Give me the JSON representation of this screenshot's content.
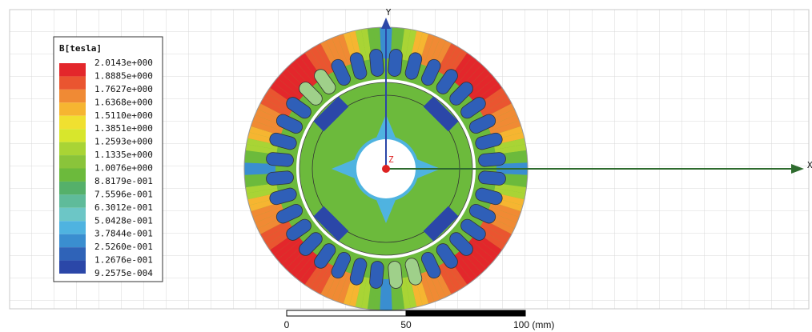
{
  "legend": {
    "title": "B[tesla]",
    "labels": [
      "2.0143e+000",
      "1.8885e+000",
      "1.7627e+000",
      "1.6368e+000",
      "1.5110e+000",
      "1.3851e+000",
      "1.2593e+000",
      "1.1335e+000",
      "1.0076e+000",
      "8.8179e-001",
      "7.5596e-001",
      "6.3012e-001",
      "5.0428e-001",
      "3.7844e-001",
      "2.5260e-001",
      "1.2676e-001",
      "9.2575e-004"
    ],
    "colors": [
      "#e3272b",
      "#ea5530",
      "#f08a34",
      "#f6b531",
      "#f0e030",
      "#d8e62c",
      "#a9d435",
      "#8ac43a",
      "#6cba3c",
      "#55b06a",
      "#5fbb9a",
      "#6cc6c6",
      "#4fb3e0",
      "#3a8ed0",
      "#2f63b8",
      "#2b47a8"
    ]
  },
  "axes": {
    "x": "X",
    "y": "Y",
    "z": "Z"
  },
  "scale_bar": {
    "labels": [
      "0",
      "50",
      "100 (mm)"
    ]
  }
}
